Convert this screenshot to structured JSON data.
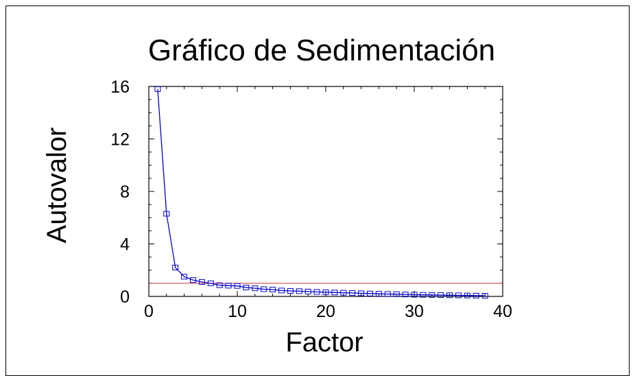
{
  "chart_data": {
    "type": "line",
    "title": "Gráfico de Sedimentación",
    "xlabel": "Factor",
    "ylabel": "Autovalor",
    "xlim": [
      0,
      40
    ],
    "ylim": [
      0,
      16
    ],
    "xticks": [
      0,
      10,
      20,
      30,
      40
    ],
    "yticks": [
      0,
      4,
      8,
      12,
      16
    ],
    "grid": false,
    "colors": {
      "series": "#0000cc",
      "reference_line": "#cc3333"
    },
    "reference_line_y": 1,
    "series": [
      {
        "x": [
          1,
          2,
          3,
          4,
          5,
          6,
          7,
          8,
          9,
          10,
          11,
          12,
          13,
          14,
          15,
          16,
          17,
          18,
          19,
          20,
          21,
          22,
          23,
          24,
          25,
          26,
          27,
          28,
          29,
          30,
          31,
          32,
          33,
          34,
          35,
          36,
          37,
          38
        ],
        "values": [
          15.8,
          6.3,
          2.2,
          1.5,
          1.25,
          1.1,
          1.0,
          0.85,
          0.82,
          0.8,
          0.68,
          0.62,
          0.55,
          0.52,
          0.45,
          0.42,
          0.4,
          0.37,
          0.34,
          0.32,
          0.3,
          0.28,
          0.26,
          0.24,
          0.22,
          0.2,
          0.18,
          0.17,
          0.15,
          0.13,
          0.12,
          0.11,
          0.1,
          0.09,
          0.08,
          0.07,
          0.06,
          0.05
        ]
      }
    ]
  }
}
